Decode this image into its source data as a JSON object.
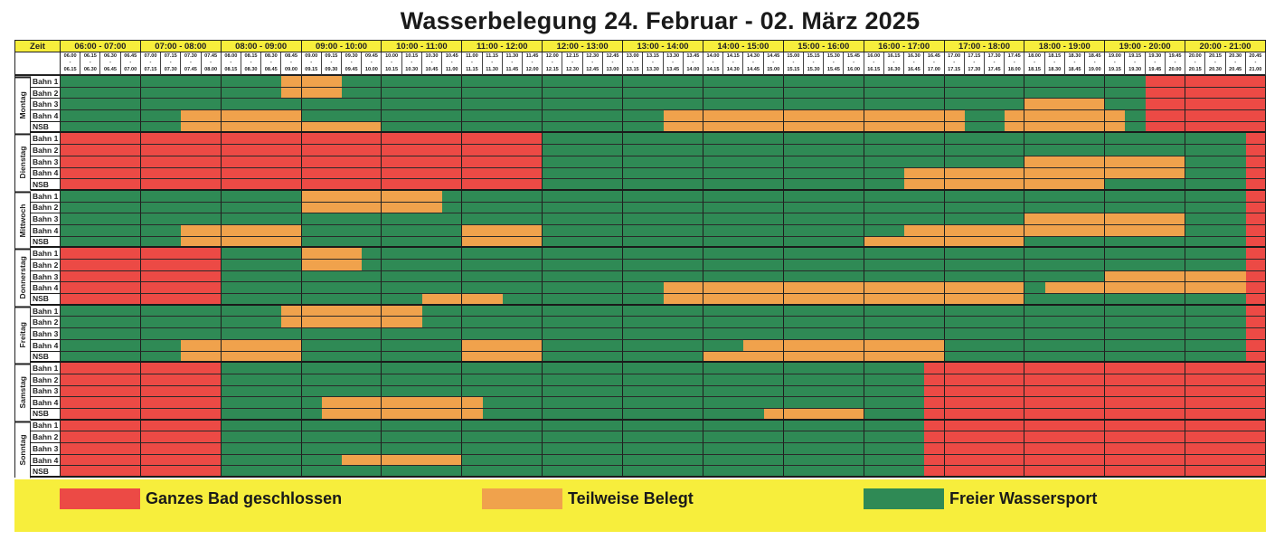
{
  "title": "Wasserbelegung 24. Februar - 02. März 2025",
  "colors": {
    "R": "#ec4a45",
    "O": "#f0a24c",
    "G": "#2f8a55",
    "header": "#f7ee3c"
  },
  "header": {
    "zeit_label": "Zeit",
    "hours": [
      "06:00 - 07:00",
      "07:00 - 08:00",
      "08:00 - 09:00",
      "09:00 - 10:00",
      "10:00 - 11:00",
      "11:00 - 12:00",
      "12:00 - 13:00",
      "13:00 - 14:00",
      "14:00 - 15:00",
      "15:00 - 16:00",
      "16:00 - 17:00",
      "17:00 - 18:00",
      "18:00 - 19:00",
      "19:00 - 20:00",
      "20:00 - 21:00"
    ],
    "slot_separator": "-",
    "slots": [
      [
        "06.00",
        "06.15"
      ],
      [
        "06.15",
        "06.30"
      ],
      [
        "06.30",
        "06.45"
      ],
      [
        "06.45",
        "07.00"
      ],
      [
        "07.00",
        "07.15"
      ],
      [
        "07.15",
        "07.30"
      ],
      [
        "07.30",
        "07.45"
      ],
      [
        "07.45",
        "08.00"
      ],
      [
        "08.00",
        "08.15"
      ],
      [
        "08.15",
        "08.30"
      ],
      [
        "08.30",
        "08.45"
      ],
      [
        "08.45",
        "09.00"
      ],
      [
        "09.00",
        "09.15"
      ],
      [
        "09.15",
        "09.30"
      ],
      [
        "09.30",
        "09.45"
      ],
      [
        "09.45",
        "10.00"
      ],
      [
        "10.00",
        "10.15"
      ],
      [
        "10.15",
        "10.30"
      ],
      [
        "10.30",
        "10.45"
      ],
      [
        "10.45",
        "11.00"
      ],
      [
        "11.00",
        "11.15"
      ],
      [
        "11.15",
        "11.30"
      ],
      [
        "11.30",
        "11.45"
      ],
      [
        "11.45",
        "12.00"
      ],
      [
        "12.00",
        "12.15"
      ],
      [
        "12.15",
        "12.30"
      ],
      [
        "12.30",
        "12.45"
      ],
      [
        "12.45",
        "13.00"
      ],
      [
        "13.00",
        "13.15"
      ],
      [
        "13.15",
        "13.30"
      ],
      [
        "13.30",
        "13.45"
      ],
      [
        "13.45",
        "14.00"
      ],
      [
        "14.00",
        "14.15"
      ],
      [
        "14.15",
        "14.30"
      ],
      [
        "14.30",
        "14.45"
      ],
      [
        "14.45",
        "15.00"
      ],
      [
        "15.00",
        "15.15"
      ],
      [
        "15.15",
        "15.30"
      ],
      [
        "15.30",
        "15.45"
      ],
      [
        "15.45",
        "16.00"
      ],
      [
        "16.00",
        "16.15"
      ],
      [
        "16.15",
        "16.30"
      ],
      [
        "16.30",
        "16.45"
      ],
      [
        "16.45",
        "17.00"
      ],
      [
        "17.00",
        "17.15"
      ],
      [
        "17.15",
        "17.30"
      ],
      [
        "17.30",
        "17.45"
      ],
      [
        "17.45",
        "18.00"
      ],
      [
        "18.00",
        "18.15"
      ],
      [
        "18.15",
        "18.30"
      ],
      [
        "18.30",
        "18.45"
      ],
      [
        "18.45",
        "19.00"
      ],
      [
        "19.00",
        "19.15"
      ],
      [
        "19.15",
        "19.30"
      ],
      [
        "19.30",
        "19.45"
      ],
      [
        "19.45",
        "20.00"
      ],
      [
        "20.00",
        "20.15"
      ],
      [
        "20.15",
        "20.30"
      ],
      [
        "20.30",
        "20.45"
      ],
      [
        "20.45",
        "21.00"
      ]
    ]
  },
  "days": [
    {
      "name": "Montag",
      "rows": [
        {
          "label": "Bahn 1",
          "cells": "GGGG GGGG GGGO OOGG GGGG GGGG GGGG GGGG GGGG GGGG GGGG GGGG GGGG GGRR RRRR"
        },
        {
          "label": "Bahn 2",
          "cells": "GGGG GGGG GGGO OOGG GGGG GGGG GGGG GGGG GGGG GGGG GGGG GGGG GGGG GGRR RRRR"
        },
        {
          "label": "Bahn 3",
          "cells": "GGGG GGGG GGGG GGGG GGGG GGGG GGGG GGGG GGGG GGGG GGGG GGGG OOOO GGRR RRRR"
        },
        {
          "label": "Bahn 4",
          "cells": "GGGG GGOO OOOO GGGG GGGG GGGG GGGG GGOO OOOO OOOO OOOO OGGO OOOO OGRR RRRR"
        },
        {
          "label": "NSB",
          "cells": "GGGG GGOO OOOO OOOO GGGG GGGG GGGG GGOO OOOO OOOO OOOO OGGO OOOO OGRR RRRR"
        }
      ]
    },
    {
      "name": "Dienstag",
      "rows": [
        {
          "label": "Bahn 1",
          "cells": "RRRR RRRR RRRR RRRR RRRR RRRR GGGG GGGG GGGG GGGG GGGG GGGG GGGG GGGG GGGR"
        },
        {
          "label": "Bahn 2",
          "cells": "RRRR RRRR RRRR RRRR RRRR RRRR GGGG GGGG GGGG GGGG GGGG GGGG GGGG GGGG GGGR"
        },
        {
          "label": "Bahn 3",
          "cells": "RRRR RRRR RRRR RRRR RRRR RRRR GGGG GGGG GGGG GGGG GGGG GGGG OOOO OOOO GGGR"
        },
        {
          "label": "Bahn 4",
          "cells": "RRRR RRRR RRRR RRRR RRRR RRRR GGGG GGGG GGGG GGGG GGOO OOOO OOOO OOOO GGGR"
        },
        {
          "label": "NSB",
          "cells": "RRRR RRRR RRRR RRRR RRRR RRRR GGGG GGGG GGGG GGGG GGOO OOOO OOOO GGGG GGGR"
        }
      ]
    },
    {
      "name": "Mittwoch",
      "rows": [
        {
          "label": "Bahn 1",
          "cells": "GGGG GGGG GGGG OOOO OOOG GGGG GGGG GGGG GGGG GGGG GGGG GGGG GGGG GGGG GGGR"
        },
        {
          "label": "Bahn 2",
          "cells": "GGGG GGGG GGGG OOOO OOOG GGGG GGGG GGGG GGGG GGGG GGGG GGGG GGGG GGGG GGGR"
        },
        {
          "label": "Bahn 3",
          "cells": "GGGG GGGG GGGG GGGG GGGG GGGG GGGG GGGG GGGG GGGG GGGG GGGG OOOO OOOO GGGR"
        },
        {
          "label": "Bahn 4",
          "cells": "GGGG GGOO OOOO GGGG GGGG OOOO GGGG GGGG GGGG GGGG GGOO OOOO OOOO OOOO GGGR"
        },
        {
          "label": "NSB",
          "cells": "GGGG GGOO OOOO GGGG GGGG OOOO GGGG GGGG GGGG GGGG OOOO OOOO GGGG GGGG GGGR"
        }
      ]
    },
    {
      "name": "Donnerstag",
      "rows": [
        {
          "label": "Bahn 1",
          "cells": "RRRR RRRR GGGG OOOG GGGG GGGG GGGG GGGG GGGG GGGG GGGG GGGG GGGG GGGG GGGR"
        },
        {
          "label": "Bahn 2",
          "cells": "RRRR RRRR GGGG OOOG GGGG GGGG GGGG GGGG GGGG GGGG GGGG GGGG GGGG GGGG GGGR"
        },
        {
          "label": "Bahn 3",
          "cells": "RRRR RRRR GGGG GGGG GGGG GGGG GGGG GGGG GGGG GGGG GGGG GGGG GGGG OOOO OOOR"
        },
        {
          "label": "Bahn 4",
          "cells": "RRRR RRRR GGGG GGGG GGGG GGGG GGGG GGOO OOOO OOOO OOOO OOOO GOOO OOOO OOOR"
        },
        {
          "label": "NSB",
          "cells": "RRRR RRRR GGGG GGGG GGOO OOGG GGGG GGOO OOOO OOOO OOOO OOOO GGGG GGGG GGGR"
        }
      ]
    },
    {
      "name": "Freitag",
      "rows": [
        {
          "label": "Bahn 1",
          "cells": "GGGG GGGG GGGO OOOO OOGG GGGG GGGG GGGG GGGG GGGG GGGG GGGG GGGG GGGG GGGR"
        },
        {
          "label": "Bahn 2",
          "cells": "GGGG GGGG GGGO OOOO OOGG GGGG GGGG GGGG GGGG GGGG GGGG GGGG GGGG GGGG GGGR"
        },
        {
          "label": "Bahn 3",
          "cells": "GGGG GGGG GGGG GGGG GGGG GGGG GGGG GGGG GGGG GGGG GGGG GGGG GGGG GGGG GGGR"
        },
        {
          "label": "Bahn 4",
          "cells": "GGGG GGOO OOOO GGGG GGGG OOOO GGGG GGGG GGOO OOOO OOOO GGGG GGGG GGGG GGGR"
        },
        {
          "label": "NSB",
          "cells": "GGGG GGOO OOOO GGGG GGGG OOOO GGGG GGGG OOOO OOOO OOOO GGGG GGGG GGGG GGGR"
        }
      ]
    },
    {
      "name": "Samstag",
      "rows": [
        {
          "label": "Bahn 1",
          "cells": "RRRR RRRR GGGG GGGG GGGG GGGG GGGG GGGG GGGG GGGG GGGR RRRR RRRR RRRR RRRR"
        },
        {
          "label": "Bahn 2",
          "cells": "RRRR RRRR GGGG GGGG GGGG GGGG GGGG GGGG GGGG GGGG GGGR RRRR RRRR RRRR RRRR"
        },
        {
          "label": "Bahn 3",
          "cells": "RRRR RRRR GGGG GGGG GGGG GGGG GGGG GGGG GGGG GGGG GGGR RRRR RRRR RRRR RRRR"
        },
        {
          "label": "Bahn 4",
          "cells": "RRRR RRRR GGGG GOOO OOOO OGGG GGGG GGGG GGGG GGGG GGGR RRRR RRRR RRRR RRRR"
        },
        {
          "label": "NSB",
          "cells": "RRRR RRRR GGGG GOOO OOOO OGGG GGGG GGGG GGGO OOOO GGGR RRRR RRRR RRRR RRRR"
        }
      ]
    },
    {
      "name": "Sonntag",
      "rows": [
        {
          "label": "Bahn 1",
          "cells": "RRRR RRRR GGGG GGGG GGGG GGGG GGGG GGGG GGGG GGGG GGGR RRRR RRRR RRRR RRRR"
        },
        {
          "label": "Bahn 2",
          "cells": "RRRR RRRR GGGG GGGG GGGG GGGG GGGG GGGG GGGG GGGG GGGR RRRR RRRR RRRR RRRR"
        },
        {
          "label": "Bahn 3",
          "cells": "RRRR RRRR GGGG GGGG GGGG GGGG GGGG GGGG GGGG GGGG GGGR RRRR RRRR RRRR RRRR"
        },
        {
          "label": "Bahn 4",
          "cells": "RRRR RRRR GGGG GGOO OOOO GGGG GGGG GGGG GGGG GGGG GGGR RRRR RRRR RRRR RRRR"
        },
        {
          "label": "NSB",
          "cells": "RRRR RRRR GGGG GGGG GGGG GGGG GGGG GGGG GGGG GGGG GGGR RRRR RRRR RRRR RRRR"
        }
      ]
    }
  ],
  "legend": [
    {
      "code": "R",
      "label": "Ganzes Bad geschlossen"
    },
    {
      "code": "O",
      "label": "Teilweise Belegt"
    },
    {
      "code": "G",
      "label": "Freier Wassersport"
    }
  ]
}
